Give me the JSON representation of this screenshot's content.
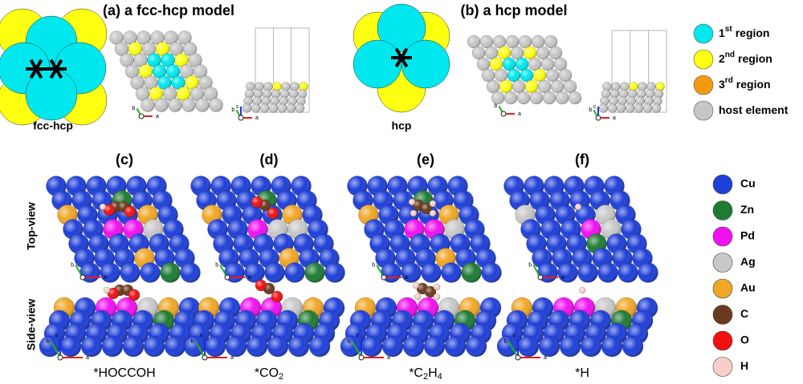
{
  "panel_a": {
    "title": "(a) a fcc-hcp model",
    "site_label": "fcc-hcp"
  },
  "panel_b": {
    "title": "(b) a hcp model",
    "site_label": "hcp"
  },
  "region_legend": [
    {
      "number": "1",
      "ordinal": "st",
      "text": "region",
      "color": "#00e8ee"
    },
    {
      "number": "2",
      "ordinal": "nd",
      "text": "region",
      "color": "#ffff10"
    },
    {
      "number": "3",
      "ordinal": "rd",
      "text": "region",
      "color": "#f39a10"
    },
    {
      "text": "host element",
      "color": "#c6c6c6"
    }
  ],
  "axis_labels": {
    "a": "a",
    "b": "b",
    "c": "c"
  },
  "view_labels": {
    "top": "Top-view",
    "side": "Side-view"
  },
  "panels": [
    {
      "label": "(c)",
      "caption": [
        {
          "text": "*HOCCOH"
        }
      ]
    },
    {
      "label": "(d)",
      "caption": [
        {
          "text": "*CO"
        },
        {
          "sub": "2"
        }
      ]
    },
    {
      "label": "(e)",
      "caption": [
        {
          "text": "*C"
        },
        {
          "sub": "2"
        },
        {
          "text": "H"
        },
        {
          "sub": "4"
        }
      ]
    },
    {
      "label": "(f)",
      "caption": [
        {
          "text": "*H"
        }
      ]
    }
  ],
  "element_legend": [
    {
      "label": "Cu",
      "color": "#1f3fd8"
    },
    {
      "label": "Zn",
      "color": "#1e7b34"
    },
    {
      "label": "Pd",
      "color": "#f010f0"
    },
    {
      "label": "Ag",
      "color": "#c8c8c8"
    },
    {
      "label": "Au",
      "color": "#f0a626"
    },
    {
      "label": "C",
      "color": "#6b3a1e"
    },
    {
      "label": "O",
      "color": "#f01010"
    },
    {
      "label": "H",
      "color": "#f8cfc8"
    }
  ]
}
